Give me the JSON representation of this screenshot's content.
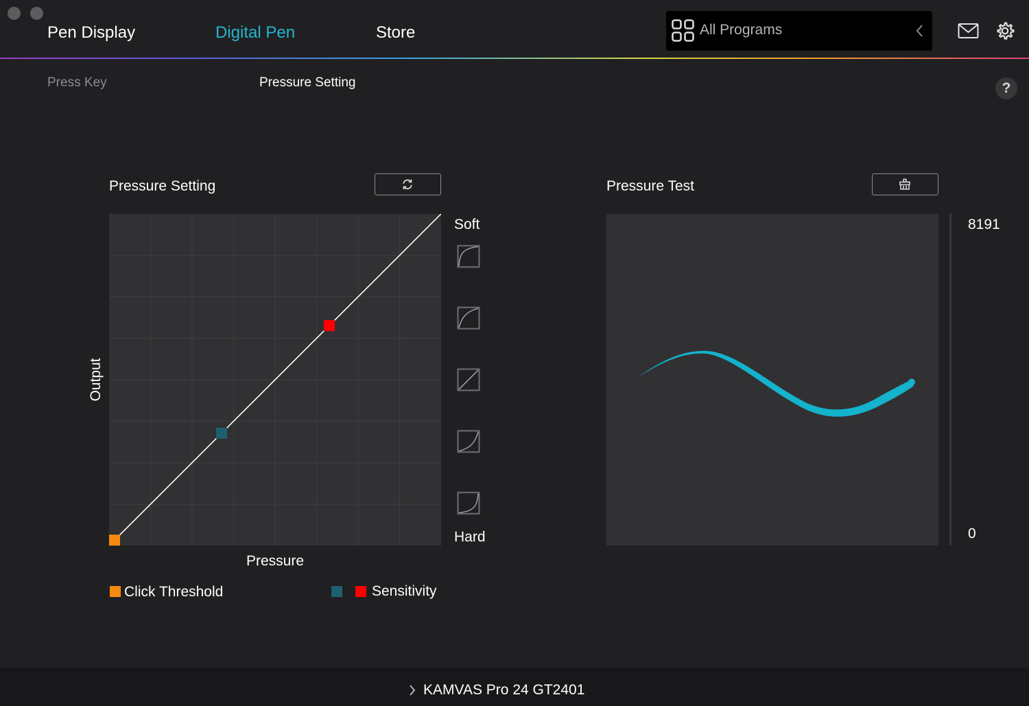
{
  "nav": {
    "tabs": [
      {
        "label": "Pen Display",
        "active": false
      },
      {
        "label": "Digital Pen",
        "active": true
      },
      {
        "label": "Store",
        "active": false
      }
    ],
    "program_select": {
      "label": "All Programs",
      "icon": "grid-icon"
    },
    "icons": [
      "mail-icon",
      "gear-icon"
    ]
  },
  "subtabs": [
    {
      "label": "Press Key",
      "active": false
    },
    {
      "label": "Pressure Setting",
      "active": true
    }
  ],
  "help": {
    "label": "?"
  },
  "pressure_setting": {
    "title": "Pressure Setting",
    "reset_icon": "refresh-icon",
    "x_label": "Pressure",
    "y_label": "Output",
    "curve_top_label": "Soft",
    "curve_bottom_label": "Hard",
    "curve_presets": [
      "soft-2",
      "soft-1",
      "linear",
      "hard-1",
      "hard-2"
    ],
    "handles": {
      "click_threshold": {
        "pressure": 0.017,
        "output": 0.017
      },
      "sensitivity_low": {
        "pressure": 0.338,
        "output": 0.338
      },
      "sensitivity_high": {
        "pressure": 0.663,
        "output": 0.663
      }
    },
    "legend": {
      "click_threshold": "Click Threshold",
      "sensitivity": "Sensitivity"
    }
  },
  "pressure_test": {
    "title": "Pressure Test",
    "clear_icon": "eraser-icon",
    "max_label": "8191",
    "min_label": "0"
  },
  "colors": {
    "accent": "#25b5cf",
    "click_threshold": "#f7890f",
    "sensitivity_low": "#1f5f72",
    "sensitivity_high": "#ff0000",
    "stroke": "#14b3cc"
  },
  "footer": {
    "device": "KAMVAS Pro 24 GT2401"
  }
}
